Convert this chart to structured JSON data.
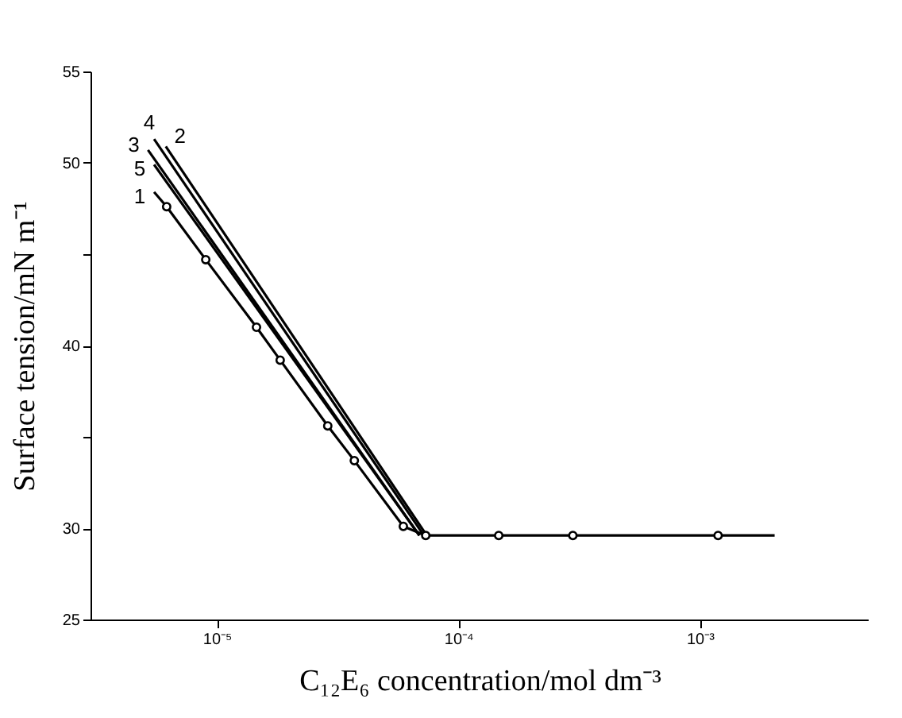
{
  "chart_data": {
    "type": "line",
    "xlabel": "C₁₂E₆ concentration/mol dm⁻³",
    "ylabel": "Surface tension/mN m⁻¹",
    "log": "x",
    "xlim": [
      3e-06,
      0.005
    ],
    "xticks": [
      {
        "value": 1e-05,
        "label": "10⁻⁵"
      },
      {
        "value": 0.0001,
        "label": "10⁻⁴"
      },
      {
        "value": 0.001,
        "label": "10⁻³"
      }
    ],
    "ylim": [
      25,
      55
    ],
    "yticks": [
      25,
      30,
      {
        "value": 35,
        "label": null
      },
      40,
      {
        "value": 45,
        "label": null
      },
      50,
      55
    ],
    "grid": false,
    "line_style": "solid",
    "series": [
      {
        "name": "1",
        "color": "#000000",
        "marker": "none",
        "x": [
          5.5e-06,
          6.2e-06,
          9e-06,
          1.46e-05,
          1.83e-05,
          2.88e-05,
          3.71e-05,
          5.92e-05,
          7.33e-05,
          0.000147,
          0.000298,
          0.00119,
          0.00204
        ],
        "values": [
          48.4,
          47.6,
          44.7,
          41.0,
          39.2,
          35.6,
          33.7,
          30.1,
          29.6,
          29.6,
          29.6,
          29.6,
          29.6
        ]
      },
      {
        "name": "2",
        "color": "#000000",
        "marker": "none",
        "x": [
          6.15e-06,
          7.4e-05
        ],
        "values": [
          50.9,
          29.6
        ]
      },
      {
        "name": "3",
        "color": "#000000",
        "marker": "none",
        "x": [
          5.19e-06,
          6.9e-05
        ],
        "values": [
          50.7,
          29.6
        ]
      },
      {
        "name": "4",
        "color": "#000000",
        "marker": "none",
        "x": [
          5.5e-06,
          7.2e-05
        ],
        "values": [
          51.3,
          29.6
        ]
      },
      {
        "name": "5",
        "color": "#000000",
        "marker": "none",
        "x": [
          5.5e-06,
          6.9e-05
        ],
        "values": [
          49.9,
          29.6
        ]
      },
      {
        "type": "scatter",
        "color": "#000000",
        "marker": "circle",
        "x": [
          6.2e-06,
          9e-06,
          1.46e-05,
          1.83e-05,
          2.88e-05,
          3.71e-05,
          5.92e-05,
          7.33e-05,
          0.000147,
          0.000298,
          0.00119
        ],
        "values": [
          47.6,
          44.7,
          41.0,
          39.2,
          35.6,
          33.7,
          30.1,
          29.6,
          29.6,
          29.6,
          29.6
        ]
      }
    ]
  }
}
